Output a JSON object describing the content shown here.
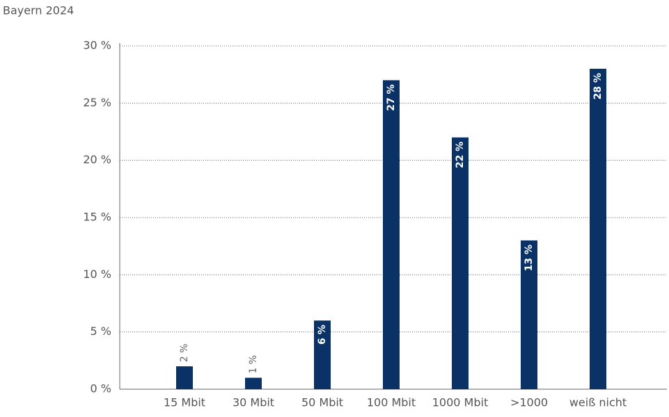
{
  "chart_data": {
    "type": "bar",
    "title": "Bayern 2024",
    "categories": [
      "15 Mbit",
      "30 Mbit",
      "50 Mbit",
      "100 Mbit",
      "1000 Mbit",
      ">1000",
      "weiß nicht"
    ],
    "values": [
      2,
      1,
      6,
      27,
      22,
      13,
      28
    ],
    "value_labels": [
      "2 %",
      "1 %",
      "6 %",
      "27 %",
      "22 %",
      "13 %",
      "28 %"
    ],
    "color": "#0b3266",
    "ylim": [
      0,
      30
    ],
    "yticks": [
      {
        "value": 0,
        "label": "0 %"
      },
      {
        "value": 5,
        "label": "5 %"
      },
      {
        "value": 10,
        "label": "10 %"
      },
      {
        "value": 15,
        "label": "15 %"
      },
      {
        "value": 20,
        "label": "20 %"
      },
      {
        "value": 25,
        "label": "25 %"
      },
      {
        "value": 30,
        "label": "30 %"
      }
    ],
    "grid": true
  }
}
